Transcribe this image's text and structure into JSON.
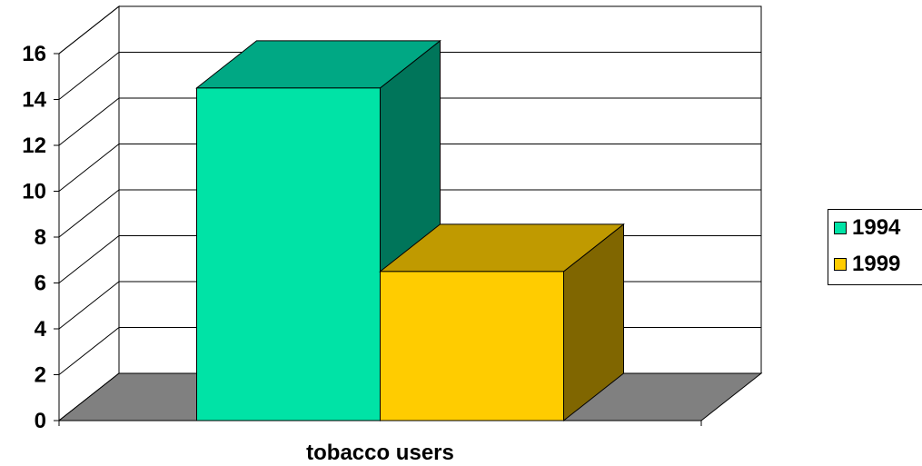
{
  "chart_data": {
    "type": "bar",
    "categories": [
      "tobacco users"
    ],
    "series": [
      {
        "name": "1994",
        "values": [
          14.5
        ],
        "color": "#00E3A6",
        "side_color": "#00755A",
        "top_color": "#00A884"
      },
      {
        "name": "1999",
        "values": [
          6.5
        ],
        "color": "#FFCC00",
        "side_color": "#806600",
        "top_color": "#C09A00"
      }
    ],
    "title": "",
    "xlabel": "",
    "ylabel": "",
    "ylim": [
      0,
      16
    ],
    "yticks": [
      0,
      2,
      4,
      6,
      8,
      10,
      12,
      14,
      16
    ],
    "grid": true,
    "style": "3d",
    "floor_color": "#808080",
    "legend_position": "right"
  }
}
